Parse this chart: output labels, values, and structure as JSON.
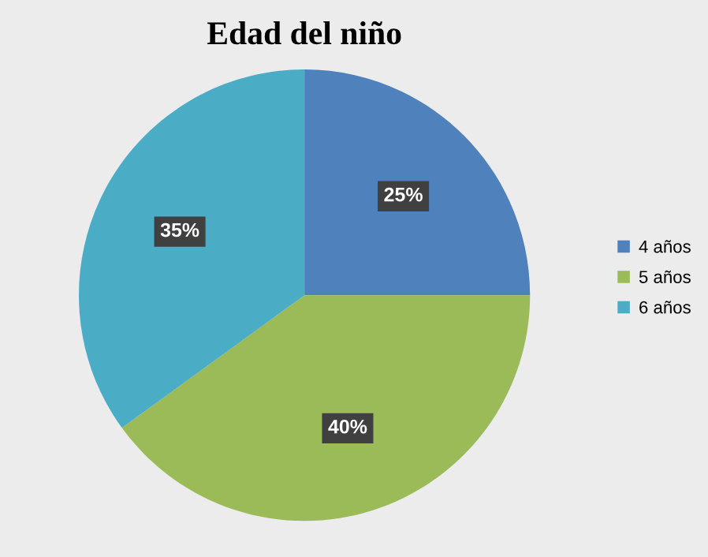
{
  "chart_data": {
    "type": "pie",
    "title": "Edad del niño",
    "categories": [
      "4 años",
      "5 años",
      "6 años"
    ],
    "values": [
      25,
      40,
      35
    ],
    "value_labels": [
      "25%",
      "40%",
      "35%"
    ],
    "colors": [
      "#4f81bd",
      "#9bbb59",
      "#4bacc6"
    ],
    "legend": "right"
  }
}
